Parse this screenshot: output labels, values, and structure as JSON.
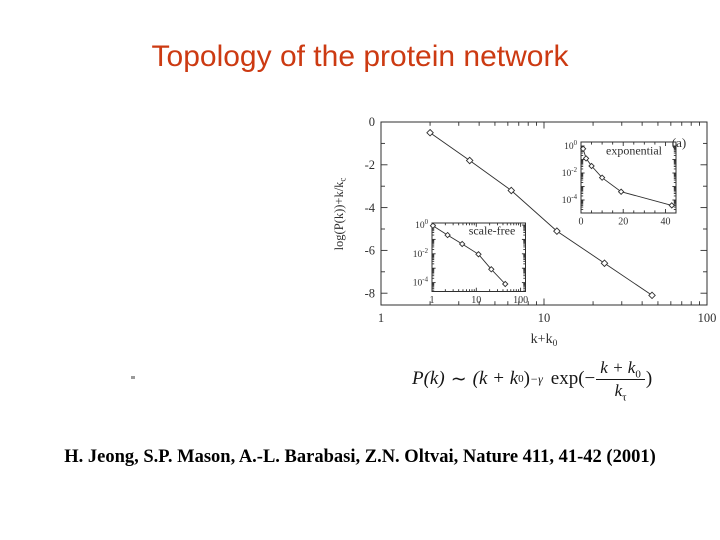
{
  "slide": {
    "title": "Topology of the protein network",
    "citation": "H. Jeong, S.P. Mason, A.-L. Barabasi, Z.N. Oltvai, Nature 411, 41-42 (2001)"
  },
  "colors": {
    "title": "#cc3a12",
    "figure_ink": "#2f2f2f"
  },
  "formula": {
    "lhs": "P(k)",
    "relation": "∼",
    "open_base": "(k + k",
    "base_sub": "0",
    "close_base": ")",
    "exponent": "−γ",
    "exp_fn": "exp(−",
    "num_base": "k + k",
    "num_sub": "0",
    "den_base": "k",
    "den_sub": "τ",
    "close_paren": ")"
  },
  "chart_data": {
    "type": "line",
    "panel_label": "(a)",
    "main": {
      "xlabel_base": "k+k",
      "xlabel_sub": "0",
      "ylabel_base": "log(P(k))+k/k",
      "ylabel_sub": "c",
      "xscale": "log",
      "xlim": [
        1,
        100
      ],
      "ylim": [
        -8.55,
        0
      ],
      "xticks": [
        1,
        10,
        100
      ],
      "yticks": [
        0,
        -2,
        -4,
        -6,
        -8
      ],
      "marker": "open-diamond",
      "x": [
        2,
        3.5,
        6.3,
        12,
        23.5,
        46
      ],
      "y": [
        -0.5,
        -1.8,
        -3.2,
        -5.1,
        -6.6,
        -8.1
      ]
    },
    "inset_exponential": {
      "label": "exponential",
      "xscale": "linear",
      "yscale": "log",
      "xlim": [
        0,
        45
      ],
      "xticks": [
        0,
        20,
        40
      ],
      "ytick_exponents": [
        0,
        -2,
        -4
      ],
      "x": [
        1,
        2.4,
        5,
        10,
        19,
        43
      ],
      "y": [
        0.62,
        0.12,
        0.033,
        0.0045,
        0.00041,
        4e-05
      ]
    },
    "inset_scale_free": {
      "label": "scale-free",
      "xscale": "log",
      "yscale": "log",
      "xlim": [
        1,
        130
      ],
      "xticks": [
        1,
        10,
        100
      ],
      "ytick_exponents": [
        0,
        -2,
        -4
      ],
      "x": [
        1.05,
        2.25,
        4.8,
        11.2,
        21.8,
        45
      ],
      "y": [
        0.89,
        0.2,
        0.048,
        0.0093,
        0.00084,
        8e-05
      ]
    }
  }
}
